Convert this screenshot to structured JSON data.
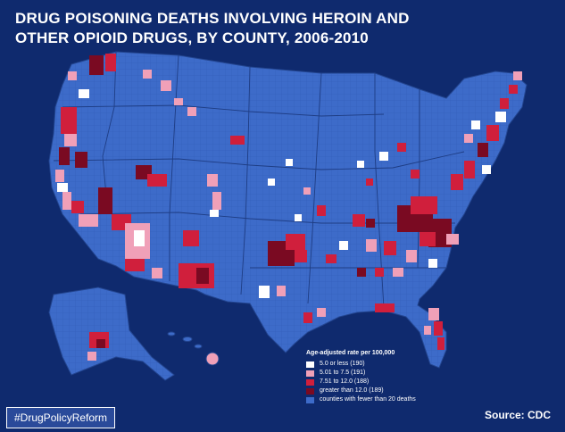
{
  "title": {
    "line1": "DRUG POISONING DEATHS INVOLVING HEROIN AND",
    "line2": "OTHER OPIOID DRUGS, BY COUNTY, 2006-2010"
  },
  "legend": {
    "title": "Age-adjusted rate per 100,000",
    "items": [
      {
        "label": "5.0 or less (190)",
        "color": "#ffffff"
      },
      {
        "label": "5.01 to 7.5 (191)",
        "color": "#f0a0b8"
      },
      {
        "label": "7.51 to 12.0 (188)",
        "color": "#d01f3c"
      },
      {
        "label": "greater than 12.0 (189)",
        "color": "#7a0a22"
      },
      {
        "label": "counties with fewer than 20 deaths",
        "color": "#3d6bc9"
      }
    ]
  },
  "hashtag": "#DrugPolicyReform",
  "source": "Source: CDC",
  "colors": {
    "background": "#0f2a6e",
    "base": "#3d6bc9",
    "border": "#23458f"
  }
}
